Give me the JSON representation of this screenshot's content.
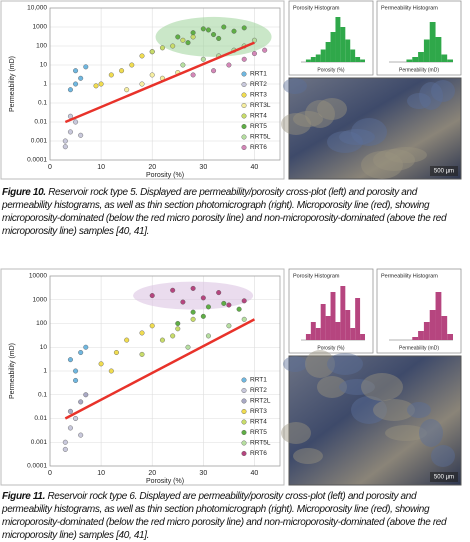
{
  "figures": [
    {
      "caption_label": "Figure 10.",
      "caption": "Reservoir rock type 5. Displayed are permeability/porosity cross-plot (left) and porosity and permeability histograms, as well as thin section photomicrograph (right). Microporosity line (red), showing microporosity-dominated (below the red micro porosity line) and non-microporosity-dominated (above the red microporosity line) samples [40, 41].",
      "chart_data": {
        "type": "scatter",
        "xlabel": "Porosity (%)",
        "ylabel": "Permeability (mD)",
        "log_y": true,
        "grid": true,
        "xlim": [
          0,
          45
        ],
        "xticks": [
          0,
          10,
          20,
          30,
          40
        ],
        "ylim": [
          0.0001,
          10000
        ],
        "yticks": [
          0.0001,
          0.001,
          0.01,
          0.1,
          1,
          10,
          100,
          1000,
          {
            "value": 10000,
            "label": "10,000"
          }
        ],
        "highlight_color": "#9fd39a",
        "series": [
          {
            "name": "RRT1",
            "color": "#6fb7e0",
            "x": [
              5,
              6,
              4,
              7,
              5
            ],
            "values": [
              5,
              2,
              0.5,
              8,
              1
            ]
          },
          {
            "name": "RRT2",
            "color": "#c9c9dc",
            "x": [
              3,
              4,
              5,
              6,
              3,
              4
            ],
            "values": [
              0.001,
              0.003,
              0.01,
              0.002,
              0.0005,
              0.02
            ]
          },
          {
            "name": "RRT3",
            "color": "#f0dc50",
            "x": [
              10,
              14,
              12,
              18,
              16,
              20,
              9
            ],
            "values": [
              1,
              5,
              3,
              30,
              10,
              50,
              0.8
            ]
          },
          {
            "name": "RRT3L",
            "color": "#f6eea0",
            "x": [
              15,
              18,
              22,
              25,
              20
            ],
            "values": [
              0.5,
              1,
              2,
              4,
              3
            ]
          },
          {
            "name": "RRT4",
            "color": "#c8dc6a",
            "x": [
              20,
              24,
              26,
              22,
              28
            ],
            "values": [
              50,
              100,
              200,
              80,
              300
            ]
          },
          {
            "name": "RRT5",
            "color": "#5fae45",
            "x": [
              25,
              28,
              30,
              32,
              34,
              36,
              27,
              31,
              33,
              38
            ],
            "values": [
              300,
              500,
              800,
              400,
              1000,
              600,
              150,
              700,
              250,
              900
            ]
          },
          {
            "name": "RRT5L",
            "color": "#b6dea0",
            "x": [
              26,
              30,
              33,
              36,
              38,
              40
            ],
            "values": [
              10,
              20,
              30,
              60,
              100,
              200
            ]
          },
          {
            "name": "RRT6",
            "color": "#d487b8",
            "x": [
              28,
              32,
              35,
              38,
              40,
              42
            ],
            "values": [
              3,
              5,
              10,
              20,
              40,
              60
            ]
          }
        ],
        "trend_line": {
          "color": "#e8322a",
          "x": [
            3,
            40
          ],
          "values": [
            0.01,
            150
          ]
        },
        "histograms": [
          {
            "title": "Porosity Histogram",
            "xlabel": "Porosity (%)",
            "color": "#2fa84a",
            "ylim": [
              0,
              20
            ],
            "values": [
              0,
              1,
              2,
              3,
              5,
              8,
              12,
              18,
              14,
              9,
              5,
              2,
              1
            ]
          },
          {
            "title": "Permeability Histogram",
            "xlabel": "Permeability (mD)",
            "color": "#2fa84a",
            "ylim": [
              0,
              20
            ],
            "values": [
              0,
              0,
              0,
              1,
              2,
              4,
              9,
              16,
              10,
              3,
              1
            ]
          }
        ],
        "scale_bar": "500 µm"
      }
    },
    {
      "caption_label": "Figure 11.",
      "caption": "Reservoir rock type 6. Displayed are permeability/porosity cross-plot (left) and porosity and permeability histograms, as well as thin section photomicrograph (right). Microporosity line (red), showing microporosity-dominated (below the red micro porosity line) and non-microporosity-dominated (above the red microporosity line) samples [40, 41].",
      "chart_data": {
        "type": "scatter",
        "xlabel": "Porosity (%)",
        "ylabel": "Permeability (mD)",
        "log_y": true,
        "grid": true,
        "xlim": [
          0,
          45
        ],
        "xticks": [
          0,
          10,
          20,
          30,
          40
        ],
        "ylim": [
          0.0001,
          10000
        ],
        "yticks": [
          0.0001,
          0.001,
          0.01,
          0.1,
          1,
          10,
          100,
          1000,
          10000
        ],
        "highlight_color": "#dcc4e2",
        "series": [
          {
            "name": "RRT1",
            "color": "#6fb7e0",
            "x": [
              4,
              5,
              6,
              5,
              7
            ],
            "values": [
              3,
              1,
              6,
              0.4,
              10
            ]
          },
          {
            "name": "RRT2",
            "color": "#c9c9dc",
            "x": [
              3,
              4,
              5,
              3,
              6
            ],
            "values": [
              0.001,
              0.004,
              0.01,
              0.0005,
              0.002
            ]
          },
          {
            "name": "RRT2L",
            "color": "#a9a9c4",
            "x": [
              4,
              6,
              7
            ],
            "values": [
              0.02,
              0.05,
              0.1
            ]
          },
          {
            "name": "RRT3",
            "color": "#f0dc50",
            "x": [
              10,
              13,
              15,
              18,
              20,
              12
            ],
            "values": [
              2,
              6,
              20,
              40,
              80,
              1
            ]
          },
          {
            "name": "RRT4",
            "color": "#c8dc6a",
            "x": [
              18,
              22,
              25,
              28,
              24
            ],
            "values": [
              5,
              20,
              60,
              150,
              30
            ]
          },
          {
            "name": "RRT5",
            "color": "#5fae45",
            "x": [
              25,
              28,
              31,
              34,
              37,
              30
            ],
            "values": [
              100,
              300,
              500,
              700,
              400,
              200
            ]
          },
          {
            "name": "RRT5L",
            "color": "#b6dea0",
            "x": [
              27,
              31,
              35,
              38
            ],
            "values": [
              10,
              30,
              80,
              150
            ]
          },
          {
            "name": "RRT6",
            "color": "#b6457f",
            "x": [
              20,
              24,
              28,
              30,
              33,
              26,
              35,
              38
            ],
            "values": [
              1500,
              2500,
              3000,
              1200,
              2000,
              800,
              600,
              900
            ]
          }
        ],
        "trend_line": {
          "color": "#e8322a",
          "x": [
            3,
            40
          ],
          "values": [
            0.01,
            150
          ]
        },
        "histograms": [
          {
            "title": "Porosity Histogram",
            "xlabel": "Porosity (%)",
            "color": "#b6457f",
            "ylim": [
              0,
              10
            ],
            "values": [
              0,
              1,
              3,
              2,
              6,
              4,
              8,
              3,
              9,
              5,
              2,
              7,
              1
            ]
          },
          {
            "title": "Permeability Histogram",
            "xlabel": "Permeability (mD)",
            "color": "#b6457f",
            "ylim": [
              0,
              20
            ],
            "values": [
              0,
              0,
              0,
              0,
              1,
              3,
              6,
              10,
              16,
              8,
              2
            ]
          }
        ],
        "scale_bar": "500 µm"
      }
    }
  ]
}
